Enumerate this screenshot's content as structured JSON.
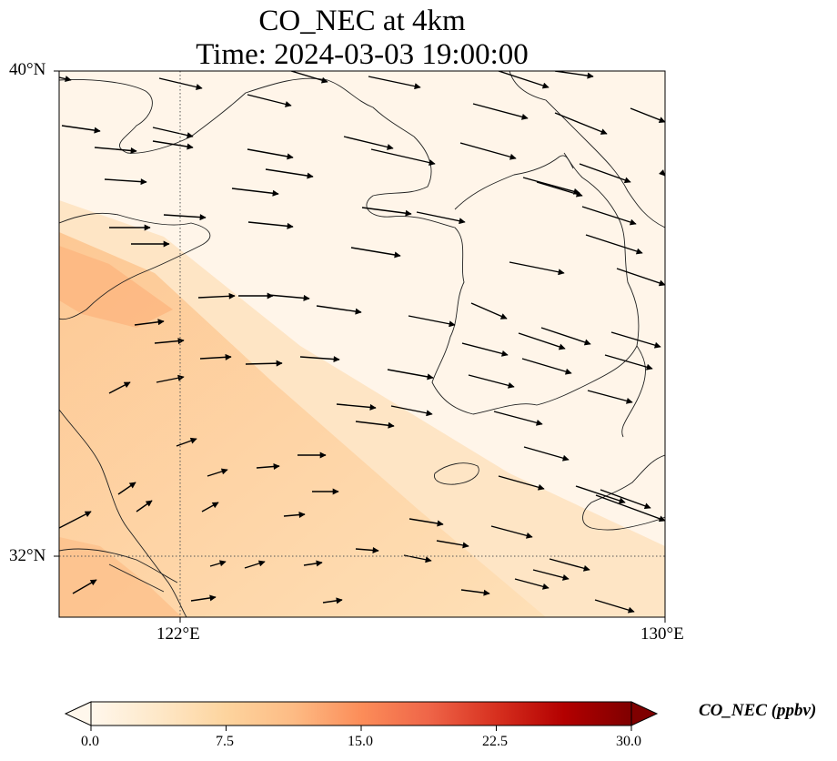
{
  "title_line1": "CO_NEC at 4km",
  "title_line2": "Time: 2024-03-03 19:00:00",
  "map": {
    "lon_range": [
      120,
      130
    ],
    "lat_range": [
      31,
      40
    ],
    "lat_labels": [
      "40°N",
      "32°N"
    ],
    "lon_labels": [
      "122°E",
      "130°E"
    ],
    "gridlines": {
      "lon": 122,
      "lat": 32,
      "style": "dotted"
    },
    "field_colormap": "OrRd"
  },
  "colorbar": {
    "label": "CO_NEC (ppbv)",
    "ticks": [
      "0.0",
      "7.5",
      "15.0",
      "22.5",
      "30.0"
    ],
    "range": [
      0,
      30
    ],
    "extend": "both",
    "colors": [
      "#fff7ec",
      "#fee8c8",
      "#fdd49e",
      "#fdbb84",
      "#fc8d59",
      "#ef6548",
      "#d7301f",
      "#b30000",
      "#7f0000"
    ]
  }
}
